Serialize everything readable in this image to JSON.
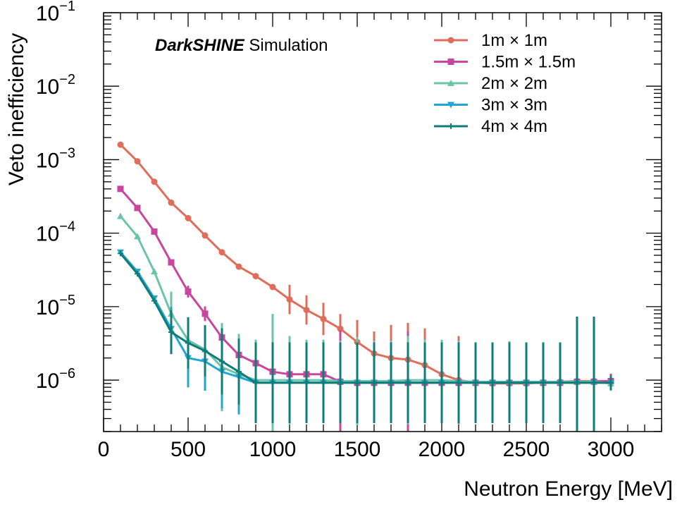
{
  "chart_data": {
    "type": "line",
    "title": "",
    "annotation": {
      "bold": "DarkSHINE",
      "rest": " Simulation"
    },
    "xlabel": "Neutron Energy [MeV]",
    "ylabel": "Veto inefficiency",
    "xlim": [
      0,
      3300
    ],
    "ylim_log10": [
      -6.7,
      -1
    ],
    "yscale": "log",
    "x_ticks": [
      0,
      500,
      1000,
      1500,
      2000,
      2500,
      3000
    ],
    "x_tick_labels": [
      "0",
      "500",
      "1000",
      "1500",
      "2000",
      "2500",
      "3000"
    ],
    "y_ticks_exp": [
      -1,
      -2,
      -3,
      -4,
      -5,
      -6
    ],
    "y_tick_base": "10",
    "y_tick_exps": [
      "−1",
      "−2",
      "−3",
      "−4",
      "−5",
      "−6"
    ],
    "legend_position": "top-right",
    "x": [
      100,
      200,
      300,
      400,
      500,
      600,
      700,
      800,
      900,
      1000,
      1100,
      1200,
      1300,
      1400,
      1500,
      1600,
      1700,
      1800,
      1900,
      2000,
      2100,
      2200,
      2300,
      2400,
      2500,
      2600,
      2700,
      2800,
      2900,
      3000
    ],
    "series": [
      {
        "name": "1m × 1m",
        "color": "#e06c5a",
        "marker": "circle",
        "values": [
          0.0016,
          0.00095,
          0.0005,
          0.00026,
          0.00016,
          9.3e-05,
          5.5e-05,
          3.5e-05,
          2.6e-05,
          1.85e-05,
          1.25e-05,
          9e-06,
          6.8e-06,
          5e-06,
          3.3e-06,
          2.3e-06,
          2e-06,
          1.9e-06,
          1.6e-06,
          1.2e-06,
          1e-06,
          9.3e-07,
          9e-07,
          9e-07,
          9e-07,
          9.3e-07,
          9.5e-07,
          9.7e-07,
          9.7e-07,
          9.7e-07
        ],
        "err": [
          0,
          0,
          0,
          0,
          0,
          0,
          0,
          0,
          0,
          0,
          0.2,
          0.2,
          0.22,
          0.2,
          0.3,
          0.3,
          0.45,
          0.5,
          0.5,
          0.2,
          0.6,
          0.2,
          0.1,
          0.1,
          0.1,
          0.1,
          0.1,
          0.1,
          0.1,
          0.08
        ]
      },
      {
        "name": "1.5m × 1.5m",
        "color": "#c8469e",
        "marker": "square",
        "values": [
          0.0004,
          0.00022,
          0.000105,
          4e-05,
          1.6e-05,
          8e-06,
          3.8e-06,
          2.2e-06,
          1.7e-06,
          1.3e-06,
          1.2e-06,
          1.2e-06,
          1.2e-06,
          9.5e-07,
          9.2e-07,
          9.2e-07,
          9.2e-07,
          9.2e-07,
          9.2e-07,
          9.2e-07,
          9.2e-07,
          9.2e-07,
          9.2e-07,
          9.2e-07,
          9.2e-07,
          9.2e-07,
          9.2e-07,
          9.5e-07,
          9.5e-07,
          9.7e-07
        ],
        "err": [
          0,
          0,
          0,
          0,
          0.08,
          0.1,
          0.15,
          0.25,
          0.25,
          0.25,
          0.25,
          0.25,
          0.3,
          0.7,
          0.4,
          0.4,
          0.4,
          0.7,
          0.5,
          0.4,
          0.4,
          0.2,
          0.1,
          0.1,
          0.1,
          0.1,
          0.1,
          0.1,
          0.1,
          0.1
        ]
      },
      {
        "name": "2m × 2m",
        "color": "#6cc4a8",
        "marker": "triangle-up",
        "values": [
          0.00017,
          9e-05,
          3e-05,
          8e-06,
          3.5e-06,
          2.6e-06,
          1.5e-06,
          1.2e-06,
          1e-06,
          1e-06,
          1e-06,
          1e-06,
          1e-06,
          9.7e-07,
          9.7e-07,
          9.7e-07,
          9.7e-07,
          1e-06,
          1e-06,
          1e-06,
          9.7e-07,
          9.5e-07,
          9.5e-07,
          9.5e-07,
          9.5e-07,
          9.5e-07,
          9.5e-07,
          9.5e-07,
          9.5e-07,
          9e-07
        ],
        "err": [
          0,
          0,
          0,
          0.3,
          0.3,
          0.3,
          0.6,
          0.55,
          0.55,
          0.9,
          0.6,
          0.55,
          0.55,
          0.55,
          0.6,
          0.55,
          0.55,
          0.6,
          0.55,
          0.55,
          0.55,
          0.4,
          0.4,
          0.55,
          0.4,
          0.4,
          0.4,
          0.55,
          0.4,
          0.1
        ]
      },
      {
        "name": "3m × 3m",
        "color": "#21a6d4",
        "marker": "triangle-down",
        "values": [
          5.5e-05,
          3e-05,
          1.3e-05,
          5e-06,
          2e-06,
          1.8e-06,
          1.3e-06,
          1.1e-06,
          9.2e-07,
          9.2e-07,
          9.2e-07,
          9.2e-07,
          9.2e-07,
          9.2e-07,
          9.2e-07,
          9.2e-07,
          9.2e-07,
          9.2e-07,
          9.2e-07,
          9.2e-07,
          9.2e-07,
          9.2e-07,
          9.2e-07,
          9.2e-07,
          9.2e-07,
          9.2e-07,
          9.2e-07,
          9.2e-07,
          9.2e-07,
          9.2e-07
        ],
        "err": [
          0,
          0,
          0,
          0.3,
          0.4,
          0.4,
          0.5,
          0.5,
          0.5,
          0.5,
          0.5,
          0.5,
          0.5,
          0.5,
          0.5,
          0.5,
          0.5,
          0.5,
          0.5,
          0.5,
          0.5,
          0.5,
          0.5,
          0.5,
          0.5,
          0.5,
          0.5,
          0.5,
          0.5,
          0.1
        ]
      },
      {
        "name": "4m × 4m",
        "color": "#107c78",
        "marker": "plus",
        "values": [
          5.3e-05,
          2.8e-05,
          1.2e-05,
          4.5e-06,
          3.2e-06,
          2.5e-06,
          1.8e-06,
          1.3e-06,
          9.2e-07,
          9.2e-07,
          9.2e-07,
          9.2e-07,
          9.2e-07,
          9.2e-07,
          9.2e-07,
          9.2e-07,
          9.2e-07,
          9.2e-07,
          9.2e-07,
          9.2e-07,
          9.2e-07,
          9.2e-07,
          9.2e-07,
          9.2e-07,
          9.2e-07,
          9.2e-07,
          9.2e-07,
          9.2e-07,
          9.2e-07,
          9.2e-07
        ],
        "err": [
          0,
          0,
          0,
          0.3,
          0.35,
          0.35,
          0.45,
          0.45,
          0.55,
          0.55,
          0.55,
          0.55,
          0.55,
          0.55,
          0.55,
          0.55,
          0.55,
          0.55,
          0.55,
          0.55,
          0.55,
          0.55,
          0.55,
          0.55,
          0.55,
          0.55,
          0.55,
          0.9,
          0.9,
          0.1
        ]
      }
    ]
  }
}
